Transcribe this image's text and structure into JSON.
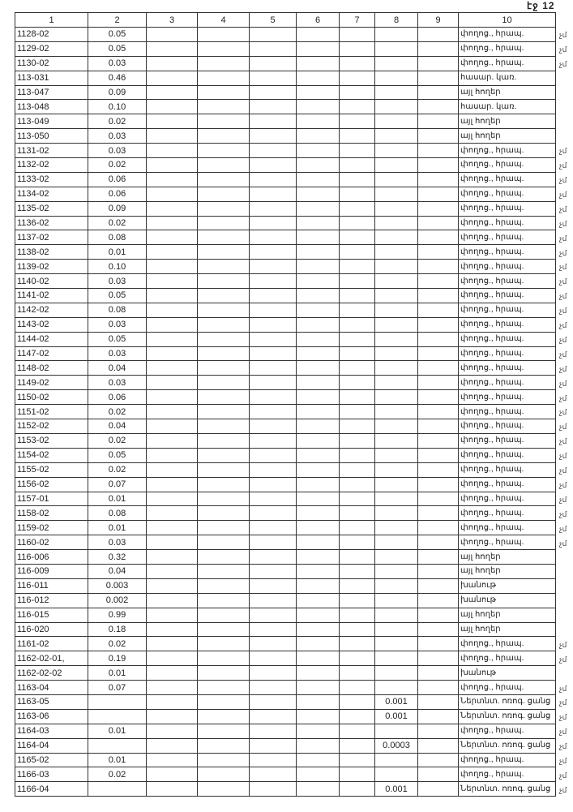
{
  "sheet_label": "էջ 12",
  "columns": [
    "1",
    "2",
    "3",
    "4",
    "5",
    "6",
    "7",
    "8",
    "9",
    "10"
  ],
  "rows": [
    {
      "c1": "1128-02",
      "c2": "0.05",
      "c8": "",
      "c10": "փողոց., հրապ.",
      "mark": "չմ"
    },
    {
      "c1": "1129-02",
      "c2": "0.05",
      "c8": "",
      "c10": "փողոց., հրապ.",
      "mark": "չմ"
    },
    {
      "c1": "1130-02",
      "c2": "0.03",
      "c8": "",
      "c10": "փողոց., հրապ.",
      "mark": "չմ"
    },
    {
      "c1": "113-031",
      "c2": "0.46",
      "c8": "",
      "c10": "հասար. կառ.",
      "mark": ""
    },
    {
      "c1": "113-047",
      "c2": "0.09",
      "c8": "",
      "c10": "այլ հողեր",
      "mark": ""
    },
    {
      "c1": "113-048",
      "c2": "0.10",
      "c8": "",
      "c10": "հասար. կառ.",
      "mark": ""
    },
    {
      "c1": "113-049",
      "c2": "0.02",
      "c8": "",
      "c10": "այլ հողեր",
      "mark": ""
    },
    {
      "c1": "113-050",
      "c2": "0.03",
      "c8": "",
      "c10": "այլ հողեր",
      "mark": ""
    },
    {
      "c1": "1131-02",
      "c2": "0.03",
      "c8": "",
      "c10": "փողոց., հրապ.",
      "mark": "չմ"
    },
    {
      "c1": "1132-02",
      "c2": "0.02",
      "c8": "",
      "c10": "փողոց., հրապ.",
      "mark": "չմ"
    },
    {
      "c1": "1133-02",
      "c2": "0.06",
      "c8": "",
      "c10": "փողոց., հրապ.",
      "mark": "չմ"
    },
    {
      "c1": "1134-02",
      "c2": "0.06",
      "c8": "",
      "c10": "փողոց., հրապ.",
      "mark": "չմ"
    },
    {
      "c1": "1135-02",
      "c2": "0.09",
      "c8": "",
      "c10": "փողոց., հրապ.",
      "mark": "չմ"
    },
    {
      "c1": "1136-02",
      "c2": "0.02",
      "c8": "",
      "c10": "փողոց., հրապ.",
      "mark": "չմ"
    },
    {
      "c1": "1137-02",
      "c2": "0.08",
      "c8": "",
      "c10": "փողոց., հրապ.",
      "mark": "չմ"
    },
    {
      "c1": "1138-02",
      "c2": "0.01",
      "c8": "",
      "c10": "փողոց., հրապ.",
      "mark": "չմ"
    },
    {
      "c1": "1139-02",
      "c2": "0.10",
      "c8": "",
      "c10": "փողոց., հրապ.",
      "mark": "չմ"
    },
    {
      "c1": "1140-02",
      "c2": "0.03",
      "c8": "",
      "c10": "փողոց., հրապ.",
      "mark": "չմ"
    },
    {
      "c1": "1141-02",
      "c2": "0.05",
      "c8": "",
      "c10": "փողոց., հրապ.",
      "mark": "չմ"
    },
    {
      "c1": "1142-02",
      "c2": "0.08",
      "c8": "",
      "c10": "փողոց., հրապ.",
      "mark": "չմ"
    },
    {
      "c1": "1143-02",
      "c2": "0.03",
      "c8": "",
      "c10": "փողոց., հրապ.",
      "mark": "չմ"
    },
    {
      "c1": "1144-02",
      "c2": "0.05",
      "c8": "",
      "c10": "փողոց., հրապ.",
      "mark": "չմ"
    },
    {
      "c1": "1147-02",
      "c2": "0.03",
      "c8": "",
      "c10": "փողոց., հրապ.",
      "mark": "չմ"
    },
    {
      "c1": "1148-02",
      "c2": "0.04",
      "c8": "",
      "c10": "փողոց., հրապ.",
      "mark": "չմ"
    },
    {
      "c1": "1149-02",
      "c2": "0.03",
      "c8": "",
      "c10": "փողոց., հրապ.",
      "mark": "չմ"
    },
    {
      "c1": "1150-02",
      "c2": "0.06",
      "c8": "",
      "c10": "փողոց., հրապ.",
      "mark": "չմ"
    },
    {
      "c1": "1151-02",
      "c2": "0.02",
      "c8": "",
      "c10": "փողոց., հրապ.",
      "mark": "չմ"
    },
    {
      "c1": "1152-02",
      "c2": "0.04",
      "c8": "",
      "c10": "փողոց., հրապ.",
      "mark": "չմ"
    },
    {
      "c1": "1153-02",
      "c2": "0.02",
      "c8": "",
      "c10": "փողոց., հրապ.",
      "mark": "չմ"
    },
    {
      "c1": "1154-02",
      "c2": "0.05",
      "c8": "",
      "c10": "փողոց., հրապ.",
      "mark": "չմ"
    },
    {
      "c1": "1155-02",
      "c2": "0.02",
      "c8": "",
      "c10": "փողոց., հրապ.",
      "mark": "չմ"
    },
    {
      "c1": "1156-02",
      "c2": "0.07",
      "c8": "",
      "c10": "փողոց., հրապ.",
      "mark": "չմ"
    },
    {
      "c1": "1157-01",
      "c2": "0.01",
      "c8": "",
      "c10": "փողոց., հրապ.",
      "mark": "չմ"
    },
    {
      "c1": "1158-02",
      "c2": "0.08",
      "c8": "",
      "c10": "փողոց., հրապ.",
      "mark": "չմ"
    },
    {
      "c1": "1159-02",
      "c2": "0.01",
      "c8": "",
      "c10": "փողոց., հրապ.",
      "mark": "չմ"
    },
    {
      "c1": "1160-02",
      "c2": "0.03",
      "c8": "",
      "c10": "փողոց., հրապ.",
      "mark": "չմ"
    },
    {
      "c1": "116-006",
      "c2": "0.32",
      "c8": "",
      "c10": "այլ հողեր",
      "mark": ""
    },
    {
      "c1": "116-009",
      "c2": "0.04",
      "c8": "",
      "c10": "այլ հողեր",
      "mark": ""
    },
    {
      "c1": "116-011",
      "c2": "0.003",
      "c8": "",
      "c10": "խանութ",
      "mark": ""
    },
    {
      "c1": "116-012",
      "c2": "0.002",
      "c8": "",
      "c10": "խանութ",
      "mark": ""
    },
    {
      "c1": "116-015",
      "c2": "0.99",
      "c8": "",
      "c10": "այլ հողեր",
      "mark": ""
    },
    {
      "c1": "116-020",
      "c2": "0.18",
      "c8": "",
      "c10": "այլ հողեր",
      "mark": ""
    },
    {
      "c1": "1161-02",
      "c2": "0.02",
      "c8": "",
      "c10": "փողոց., հրապ.",
      "mark": "չմ"
    },
    {
      "c1": "1162-02-01,",
      "c2": "0.19",
      "c8": "",
      "c10": "փողոց., հրապ.",
      "mark": "չմ"
    },
    {
      "c1": "1162-02-02",
      "c2": "0.01",
      "c8": "",
      "c10": "խանութ",
      "mark": ""
    },
    {
      "c1": "1163-04",
      "c2": "0.07",
      "c8": "",
      "c10": "փողոց., հրապ.",
      "mark": "չմ"
    },
    {
      "c1": "1163-05",
      "c2": "",
      "c8": "0.001",
      "c10": "Ներտնտ. ոռոգ. ցանց",
      "mark": "չմ"
    },
    {
      "c1": "1163-06",
      "c2": "",
      "c8": "0.001",
      "c10": "Ներտնտ. ոռոգ. ցանց",
      "mark": "չմ"
    },
    {
      "c1": "1164-03",
      "c2": "0.01",
      "c8": "",
      "c10": "փողոց., հրապ.",
      "mark": "չմ"
    },
    {
      "c1": "1164-04",
      "c2": "",
      "c8": "0.0003",
      "c10": "Ներտնտ. ոռոգ. ցանց",
      "mark": "չմ"
    },
    {
      "c1": "1165-02",
      "c2": "0.01",
      "c8": "",
      "c10": "փողոց., հրապ.",
      "mark": "չմ"
    },
    {
      "c1": "1166-03",
      "c2": "0.02",
      "c8": "",
      "c10": "փողոց., հրապ.",
      "mark": "չմ"
    },
    {
      "c1": "1166-04",
      "c2": "",
      "c8": "0.001",
      "c10": "Ներտնտ. ոռոգ. ցանց",
      "mark": "չմ"
    }
  ]
}
